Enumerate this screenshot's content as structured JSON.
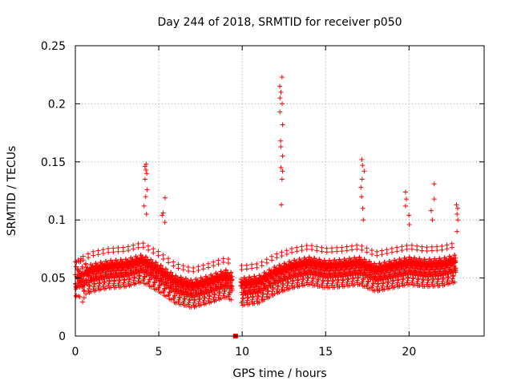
{
  "chart_data": {
    "type": "scatter",
    "title": "Day 244 of 2018, SRMTID for receiver p050",
    "xlabel": "GPS time / hours",
    "ylabel": "SRMTID / TECUs",
    "xlim": [
      0,
      24.5
    ],
    "ylim": [
      0,
      0.25
    ],
    "x_ticks": [
      0,
      5,
      10,
      15,
      20
    ],
    "x_tick_labels": [
      "0",
      "5",
      "10",
      "15",
      "20"
    ],
    "y_ticks": [
      0,
      0.05,
      0.1,
      0.15,
      0.2,
      0.25
    ],
    "y_tick_labels": [
      "0",
      "0.05",
      "0.1",
      "0.15",
      "0.2",
      "0.25"
    ],
    "grid": true,
    "marker": "+",
    "color": "#ff0000",
    "marker_square_at": {
      "x": 9.6,
      "y": 0
    },
    "envelope_note": "approximate base level of the scatter cloud by hour",
    "base_curve": [
      [
        0,
        0.045
      ],
      [
        1,
        0.052
      ],
      [
        2,
        0.055
      ],
      [
        3,
        0.056
      ],
      [
        4,
        0.06
      ],
      [
        5,
        0.052
      ],
      [
        6,
        0.042
      ],
      [
        7,
        0.038
      ],
      [
        8,
        0.042
      ],
      [
        9,
        0.047
      ],
      [
        10,
        0.04
      ],
      [
        11,
        0.042
      ],
      [
        12,
        0.05
      ],
      [
        13,
        0.055
      ],
      [
        14,
        0.058
      ],
      [
        15,
        0.055
      ],
      [
        16,
        0.056
      ],
      [
        17,
        0.058
      ],
      [
        18,
        0.052
      ],
      [
        19,
        0.055
      ],
      [
        20,
        0.058
      ],
      [
        21,
        0.056
      ],
      [
        22,
        0.057
      ],
      [
        22.8,
        0.06
      ]
    ],
    "spikes": [
      {
        "x": 4.2,
        "values": [
          0.105,
          0.112,
          0.12,
          0.126,
          0.135,
          0.14,
          0.143,
          0.146,
          0.148
        ]
      },
      {
        "x": 5.3,
        "values": [
          0.098,
          0.104,
          0.106,
          0.119
        ]
      },
      {
        "x": 12.3,
        "values": [
          0.113,
          0.135,
          0.142,
          0.145,
          0.155,
          0.163,
          0.168,
          0.182,
          0.193,
          0.2,
          0.205,
          0.21,
          0.215,
          0.223
        ]
      },
      {
        "x": 17.2,
        "values": [
          0.1,
          0.11,
          0.12,
          0.128,
          0.135,
          0.142,
          0.147,
          0.152
        ]
      },
      {
        "x": 19.9,
        "values": [
          0.096,
          0.104,
          0.112,
          0.118,
          0.124
        ]
      },
      {
        "x": 21.4,
        "values": [
          0.1,
          0.108,
          0.118,
          0.131
        ]
      },
      {
        "x": 22.8,
        "values": [
          0.09,
          0.1,
          0.105,
          0.11,
          0.113
        ]
      }
    ]
  }
}
